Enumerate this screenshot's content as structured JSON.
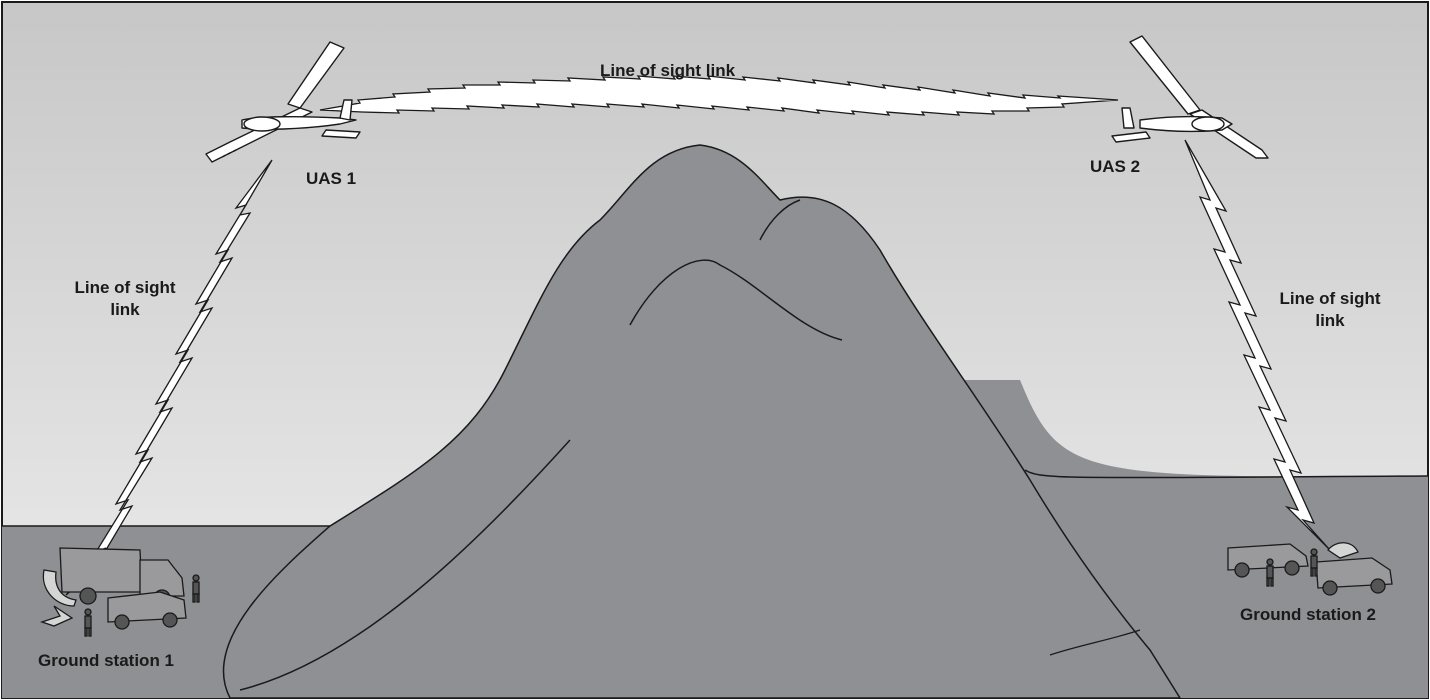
{
  "links": {
    "top": "Line of sight link",
    "left_line1": "Line of sight",
    "left_line2": "link",
    "right_line1": "Line of sight",
    "right_line2": "link"
  },
  "aircraft": {
    "uas1": "UAS 1",
    "uas2": "UAS 2"
  },
  "stations": {
    "gs1": "Ground station 1",
    "gs2": "Ground station 2"
  },
  "colors": {
    "sky_top": "#c9c9c9",
    "sky_bottom": "#ededed",
    "ground": "#8f9094",
    "mountain": "#8f9094",
    "outline": "#1a1a1a",
    "lightning": "#ffffff"
  }
}
